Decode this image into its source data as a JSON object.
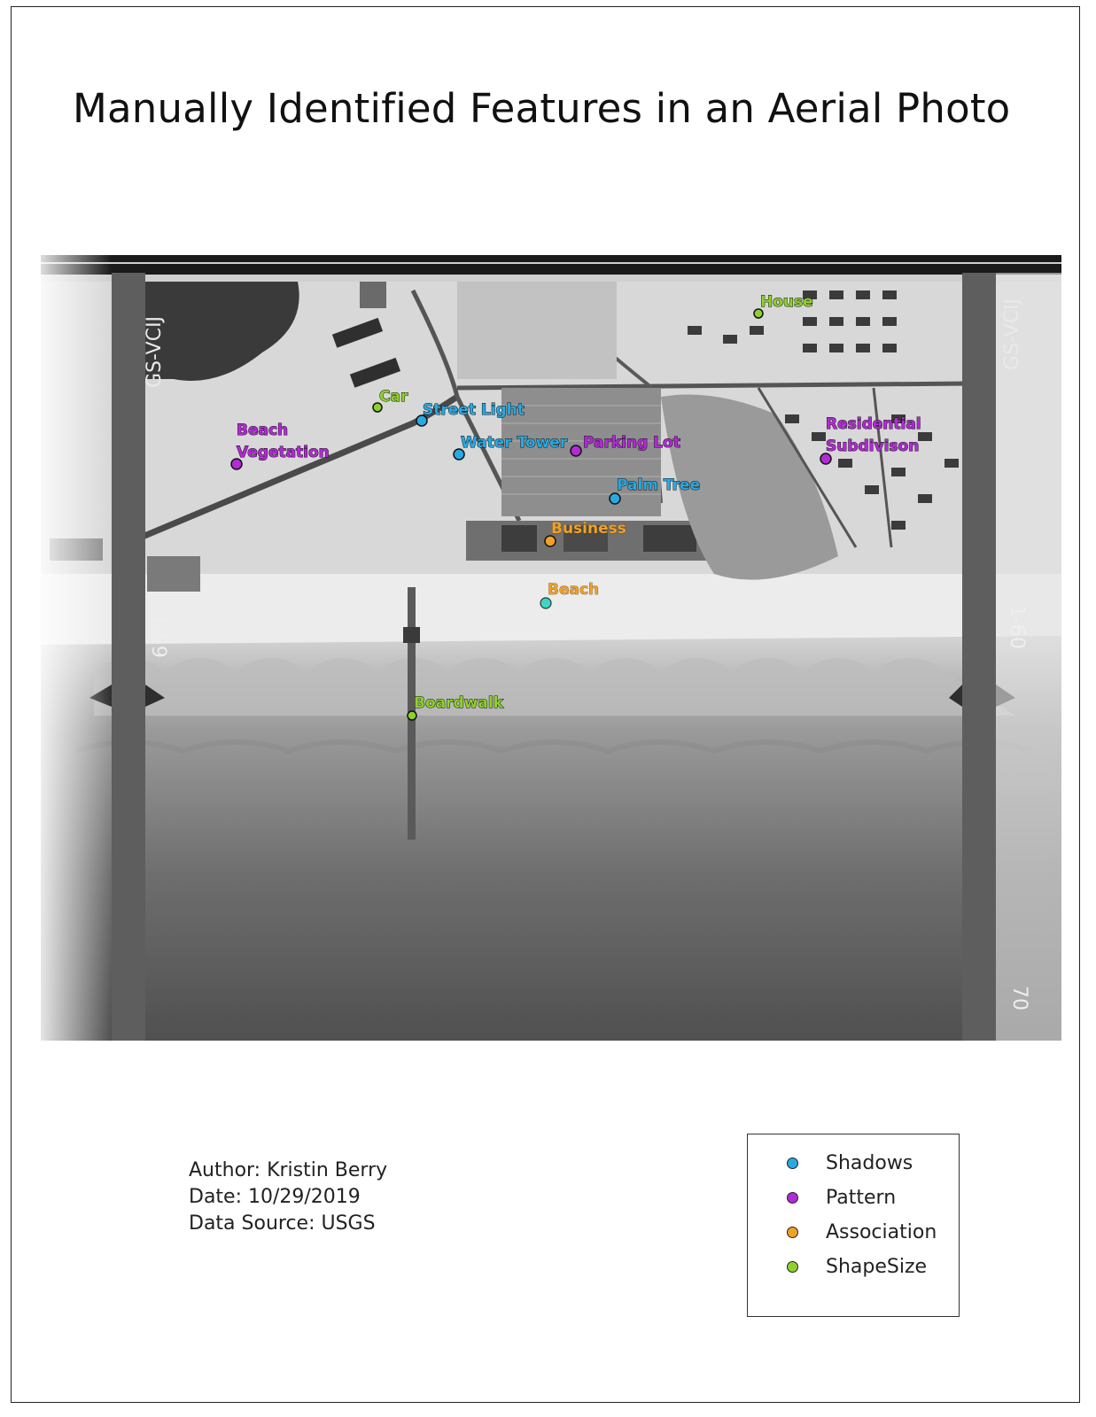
{
  "title": "Manually Identified Features in an Aerial Photo",
  "photo": {
    "film_labels": {
      "left_top": "GS-VCIJ",
      "right_top": "GS-VCIJ",
      "left_mid": "1-59",
      "right_mid": "1-60",
      "right_bottom": "70"
    }
  },
  "features": [
    {
      "label": "House",
      "category": "ShapeSize"
    },
    {
      "label": "Car",
      "category": "ShapeSize"
    },
    {
      "label": "Street Light",
      "category": "Shadows"
    },
    {
      "label": "Beach Vegetation",
      "line1": "Beach",
      "line2": "Vegetation",
      "category": "Pattern"
    },
    {
      "label": "Water Tower",
      "category": "Shadows"
    },
    {
      "label": "Parking Lot",
      "category": "Pattern"
    },
    {
      "label": "Residential Subdivison",
      "line1": "Residential",
      "line2": "Subdivison",
      "category": "Pattern"
    },
    {
      "label": "Palm Tree",
      "category": "Shadows"
    },
    {
      "label": "Business",
      "category": "Association"
    },
    {
      "label": "Beach",
      "category": "Association"
    },
    {
      "label": "Boardwalk",
      "category": "ShapeSize"
    }
  ],
  "colors": {
    "Shadows": "#29a9e1",
    "Pattern": "#b32ad6",
    "Association": "#f2a126",
    "ShapeSize": "#8fd12b",
    "beach_marker": "#3cd6c2"
  },
  "meta": {
    "author": "Author: Kristin Berry",
    "date": "Date: 10/29/2019",
    "source": "Data Source: USGS"
  },
  "legend": {
    "items": [
      {
        "label": "Shadows",
        "color": "#29a9e1"
      },
      {
        "label": "Pattern",
        "color": "#b32ad6"
      },
      {
        "label": "Association",
        "color": "#f2a126"
      },
      {
        "label": "ShapeSize",
        "color": "#8fd12b"
      }
    ]
  }
}
